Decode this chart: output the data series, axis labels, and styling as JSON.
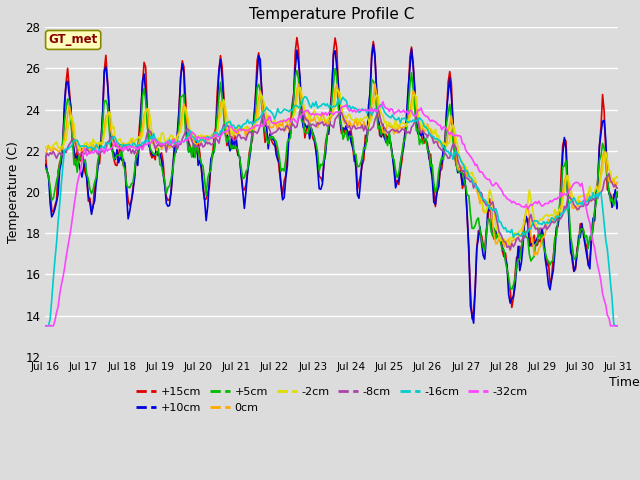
{
  "title": "Temperature Profile C",
  "xlabel": "Time",
  "ylabel": "Temperature (C)",
  "ylim": [
    12,
    28
  ],
  "xlim": [
    0,
    360
  ],
  "background_color": "#dcdcdc",
  "series": [
    {
      "label": "+15cm",
      "color": "#dd0000",
      "lw": 1.2
    },
    {
      "label": "+10cm",
      "color": "#0000dd",
      "lw": 1.2
    },
    {
      "label": "+5cm",
      "color": "#00bb00",
      "lw": 1.2
    },
    {
      "label": "0cm",
      "color": "#ffaa00",
      "lw": 1.2
    },
    {
      "label": "-2cm",
      "color": "#dddd00",
      "lw": 1.2
    },
    {
      "label": "-8cm",
      "color": "#aa44aa",
      "lw": 1.2
    },
    {
      "label": "-16cm",
      "color": "#00cccc",
      "lw": 1.2
    },
    {
      "label": "-32cm",
      "color": "#ff44ff",
      "lw": 1.2
    }
  ],
  "xtick_labels": [
    "Jul 16",
    "Jul 17",
    "Jul 18",
    "Jul 19",
    "Jul 20",
    "Jul 21",
    "Jul 22",
    "Jul 23",
    "Jul 24",
    "Jul 25",
    "Jul 26",
    "Jul 27",
    "Jul 28",
    "Jul 29",
    "Jul 30",
    "Jul 31"
  ],
  "xtick_positions": [
    0,
    24,
    48,
    72,
    96,
    120,
    144,
    168,
    192,
    216,
    240,
    264,
    288,
    312,
    336,
    360
  ],
  "ytick_values": [
    12,
    14,
    16,
    18,
    20,
    22,
    24,
    26,
    28
  ],
  "annotation_text": "GT_met",
  "legend_items": [
    {
      "label": "+15cm",
      "color": "#dd0000"
    },
    {
      "label": "+10cm",
      "color": "#0000dd"
    },
    {
      "label": "+5cm",
      "color": "#00bb00"
    },
    {
      "label": "0cm",
      "color": "#ffaa00"
    },
    {
      "label": "-2cm",
      "color": "#dddd00"
    },
    {
      "label": "-8cm",
      "color": "#aa44aa"
    },
    {
      "label": "-16cm",
      "color": "#00cccc"
    },
    {
      "label": "-32cm",
      "color": "#ff44ff"
    }
  ]
}
